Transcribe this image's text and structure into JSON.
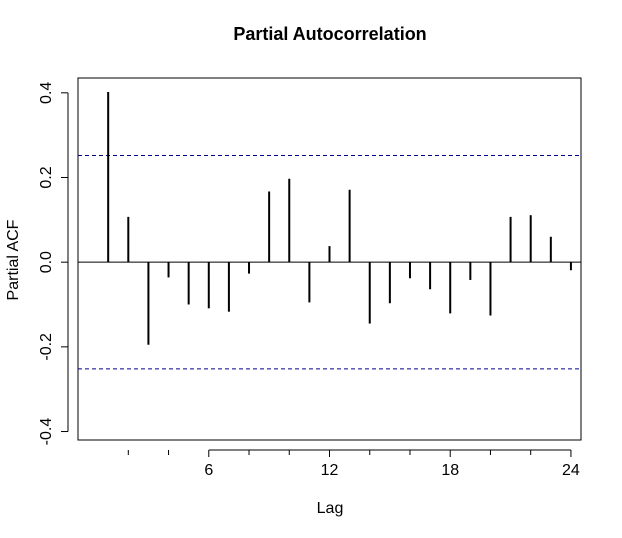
{
  "chart_data": {
    "type": "bar",
    "title": "Partial Autocorrelation",
    "xlabel": "Lag",
    "ylabel": "Partial ACF",
    "xlim": [
      -0.5,
      24.5
    ],
    "ylim": [
      -0.42,
      0.435
    ],
    "x_ticks": [
      6,
      12,
      18,
      24
    ],
    "x_tick_labels": [
      "6",
      "12",
      "18",
      "24"
    ],
    "y_ticks": [
      -0.4,
      -0.2,
      0.0,
      0.2,
      0.4
    ],
    "y_tick_labels": [
      "-0.4",
      "-0.2",
      "0.0",
      "0.2",
      "0.4"
    ],
    "confidence_bounds": [
      0.252,
      -0.252
    ],
    "lags": [
      1,
      2,
      3,
      4,
      5,
      6,
      7,
      8,
      9,
      10,
      11,
      12,
      13,
      14,
      15,
      16,
      17,
      18,
      19,
      20,
      21,
      22,
      23,
      24
    ],
    "values": [
      0.402,
      0.107,
      -0.195,
      -0.036,
      -0.1,
      -0.109,
      -0.117,
      -0.027,
      0.167,
      0.197,
      -0.095,
      0.038,
      0.171,
      -0.145,
      -0.097,
      -0.038,
      -0.064,
      -0.121,
      -0.042,
      -0.126,
      0.107,
      0.111,
      0.06,
      -0.019
    ],
    "grid": false,
    "legend": "none",
    "bar_color": "#000000",
    "bound_color": "#00008b"
  }
}
